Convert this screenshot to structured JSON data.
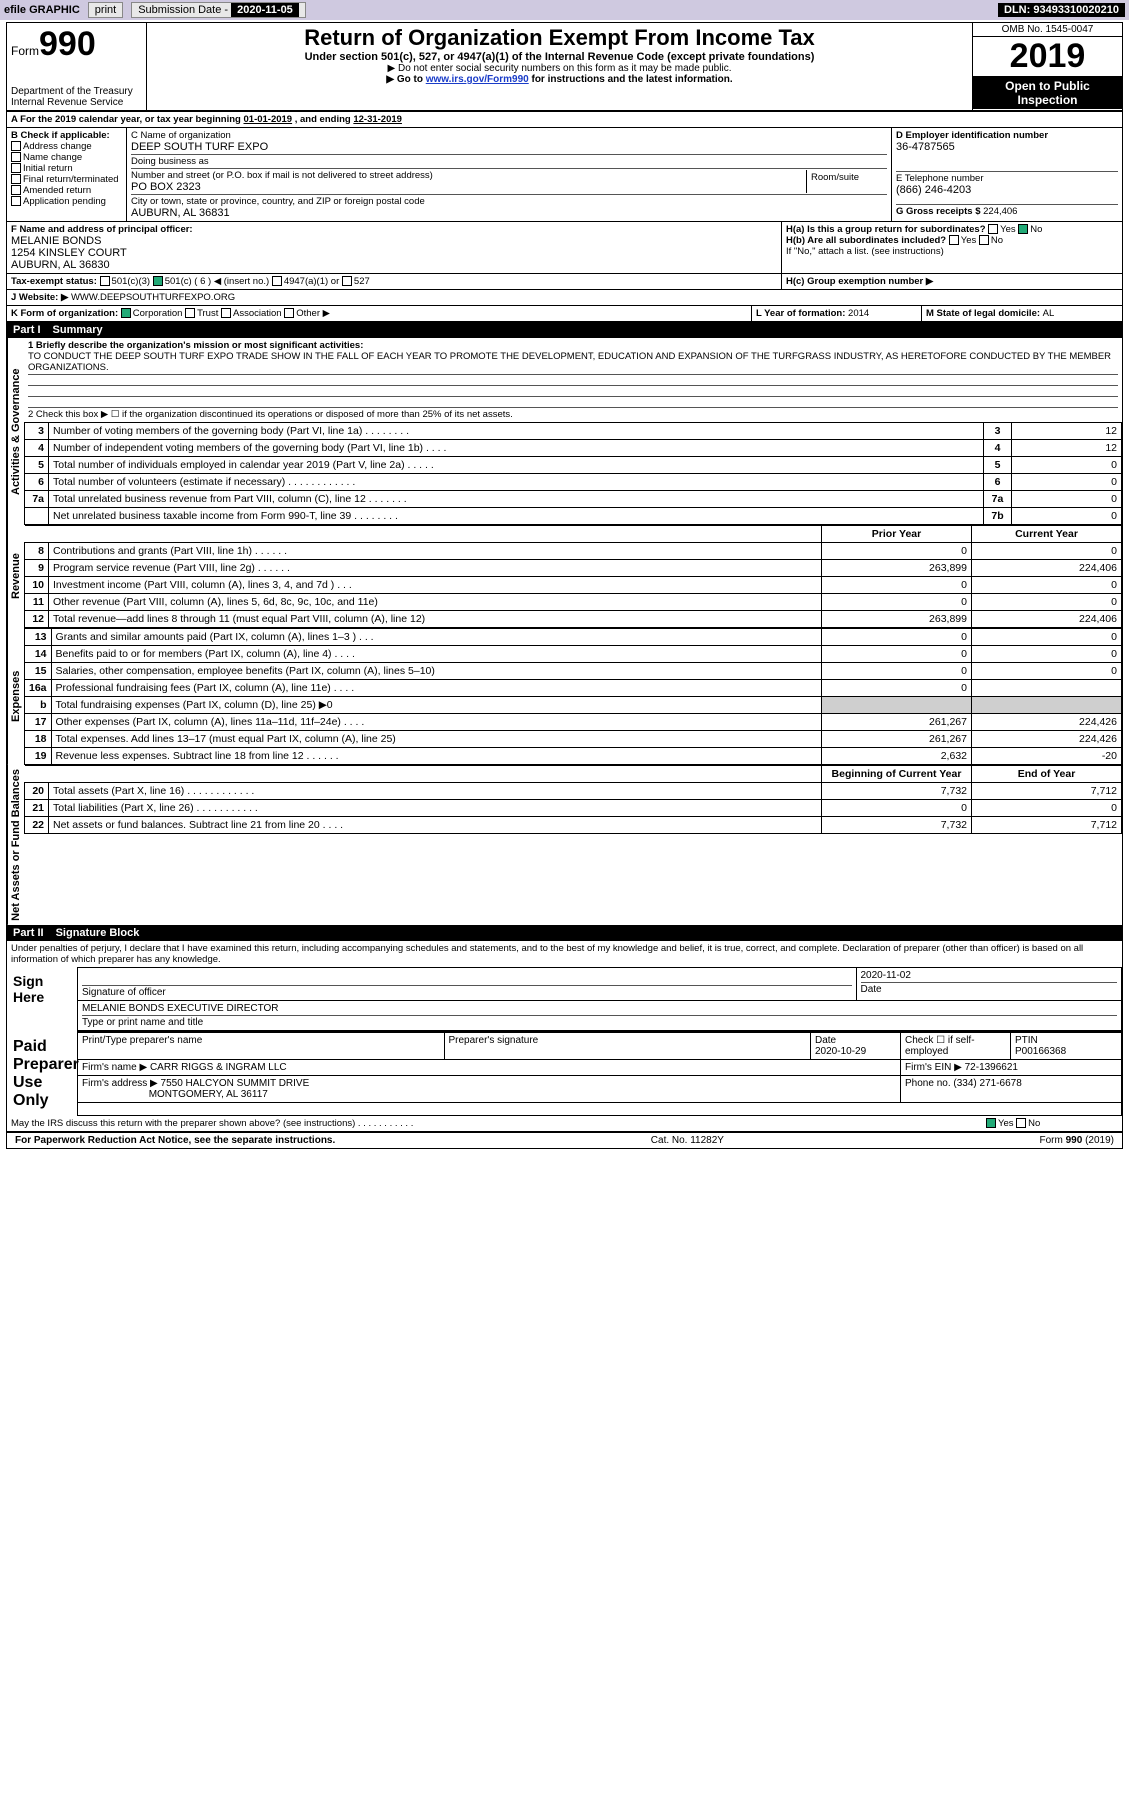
{
  "topbar": {
    "efile": "efile GRAPHIC",
    "print": "print",
    "submission_label": "Submission Date - ",
    "submission_date": "2020-11-05",
    "dln_label": "DLN: ",
    "dln": "93493310020210"
  },
  "header": {
    "form_prefix": "Form",
    "form_no": "990",
    "dept": "Department of the Treasury\nInternal Revenue Service",
    "title": "Return of Organization Exempt From Income Tax",
    "sub": "Under section 501(c), 527, or 4947(a)(1) of the Internal Revenue Code (except private foundations)",
    "note1": "▶ Do not enter social security numbers on this form as it may be made public.",
    "note2_pre": "▶ Go to ",
    "note2_link": "www.irs.gov/Form990",
    "note2_post": " for instructions and the latest information.",
    "omb": "OMB No. 1545-0047",
    "year": "2019",
    "inspect": "Open to Public Inspection"
  },
  "periodA": {
    "text_pre": "For the 2019 calendar year, or tax year beginning ",
    "begin": "01-01-2019",
    "mid": " , and ending ",
    "end": "12-31-2019"
  },
  "boxB": {
    "label": "B Check if applicable:",
    "opts": [
      "Address change",
      "Name change",
      "Initial return",
      "Final return/terminated",
      "Amended return",
      "Application pending"
    ]
  },
  "boxC": {
    "name_label": "C Name of organization",
    "name": "DEEP SOUTH TURF EXPO",
    "dba_label": "Doing business as",
    "dba": "",
    "addr_label": "Number and street (or P.O. box if mail is not delivered to street address)",
    "room_label": "Room/suite",
    "addr": "PO BOX 2323",
    "city_label": "City or town, state or province, country, and ZIP or foreign postal code",
    "city": "AUBURN, AL  36831"
  },
  "boxD": {
    "label": "D Employer identification number",
    "value": "36-4787565"
  },
  "boxE": {
    "label": "E Telephone number",
    "value": "(866) 246-4203"
  },
  "boxG": {
    "label": "G Gross receipts $ ",
    "value": "224,406"
  },
  "boxF": {
    "label": "F  Name and address of principal officer:",
    "name": "MELANIE BONDS",
    "addr1": "1254 KINSLEY COURT",
    "addr2": "AUBURN, AL  36830"
  },
  "boxH": {
    "ha": "H(a)  Is this a group return for subordinates?",
    "hb": "H(b)  Are all subordinates included?",
    "hb_note": "If \"No,\" attach a list. (see instructions)",
    "hc": "H(c)  Group exemption number ▶",
    "yes": "Yes",
    "no": "No"
  },
  "taxexempt": {
    "label": "Tax-exempt status:",
    "c3": "501(c)(3)",
    "c": "501(c) ( 6 ) ◀ (insert no.)",
    "a1": "4947(a)(1) or",
    "s527": "527"
  },
  "boxJ": {
    "label": "J    Website: ▶",
    "value": "WWW.DEEPSOUTHTURFEXPO.ORG"
  },
  "boxK": {
    "label": "K Form of organization:",
    "opts": [
      "Corporation",
      "Trust",
      "Association",
      "Other ▶"
    ]
  },
  "boxL": {
    "label": "L Year of formation: ",
    "value": "2014"
  },
  "boxM": {
    "label": "M State of legal domicile: ",
    "value": "AL"
  },
  "part1": {
    "tag": "Part I",
    "title": "Summary",
    "line1_label": "1  Briefly describe the organization's mission or most significant activities:",
    "line1_text": "TO CONDUCT THE DEEP SOUTH TURF EXPO TRADE SHOW IN THE FALL OF EACH YEAR TO PROMOTE THE DEVELOPMENT, EDUCATION AND EXPANSION OF THE TURFGRASS INDUSTRY, AS HERETOFORE CONDUCTED BY THE MEMBER ORGANIZATIONS.",
    "line2": "2   Check this box ▶ ☐  if the organization discontinued its operations or disposed of more than 25% of its net assets.",
    "gov_rows": [
      {
        "n": "3",
        "t": "Number of voting members of the governing body (Part VI, line 1a)  .   .   .   .   .   .   .   .",
        "box": "3",
        "v": "12"
      },
      {
        "n": "4",
        "t": "Number of independent voting members of the governing body (Part VI, line 1b)   .   .   .   .",
        "box": "4",
        "v": "12"
      },
      {
        "n": "5",
        "t": "Total number of individuals employed in calendar year 2019 (Part V, line 2a)   .   .   .   .   .",
        "box": "5",
        "v": "0"
      },
      {
        "n": "6",
        "t": "Total number of volunteers (estimate if necessary)   .   .   .   .   .   .   .   .   .   .   .   .",
        "box": "6",
        "v": "0"
      },
      {
        "n": "7a",
        "t": "Total unrelated business revenue from Part VIII, column (C), line 12   .   .   .   .   .   .   .",
        "box": "7a",
        "v": "0"
      },
      {
        "n": "",
        "t": "Net unrelated business taxable income from Form 990-T, line 39   .   .   .   .   .   .   .   .",
        "box": "7b",
        "v": "0"
      }
    ],
    "col_prior": "Prior Year",
    "col_curr": "Current Year",
    "rev_rows": [
      {
        "n": "8",
        "t": "Contributions and grants (Part VIII, line 1h)   .   .   .   .   .   .",
        "p": "0",
        "c": "0"
      },
      {
        "n": "9",
        "t": "Program service revenue (Part VIII, line 2g)   .   .   .   .   .   .",
        "p": "263,899",
        "c": "224,406"
      },
      {
        "n": "10",
        "t": "Investment income (Part VIII, column (A), lines 3, 4, and 7d )   .   .   .",
        "p": "0",
        "c": "0"
      },
      {
        "n": "11",
        "t": "Other revenue (Part VIII, column (A), lines 5, 6d, 8c, 9c, 10c, and 11e)",
        "p": "0",
        "c": "0"
      },
      {
        "n": "12",
        "t": "Total revenue—add lines 8 through 11 (must equal Part VIII, column (A), line 12)",
        "p": "263,899",
        "c": "224,406"
      }
    ],
    "exp_rows": [
      {
        "n": "13",
        "t": "Grants and similar amounts paid (Part IX, column (A), lines 1–3 )   .   .   .",
        "p": "0",
        "c": "0"
      },
      {
        "n": "14",
        "t": "Benefits paid to or for members (Part IX, column (A), line 4)   .   .   .   .",
        "p": "0",
        "c": "0"
      },
      {
        "n": "15",
        "t": "Salaries, other compensation, employee benefits (Part IX, column (A), lines 5–10)",
        "p": "0",
        "c": "0"
      },
      {
        "n": "16a",
        "t": "Professional fundraising fees (Part IX, column (A), line 11e)   .   .   .   .",
        "p": "0",
        "c": ""
      },
      {
        "n": "b",
        "t": "Total fundraising expenses (Part IX, column (D), line 25) ▶0",
        "p": "gray",
        "c": "gray"
      },
      {
        "n": "17",
        "t": "Other expenses (Part IX, column (A), lines 11a–11d, 11f–24e)   .   .   .   .",
        "p": "261,267",
        "c": "224,426"
      },
      {
        "n": "18",
        "t": "Total expenses. Add lines 13–17 (must equal Part IX, column (A), line 25)",
        "p": "261,267",
        "c": "224,426"
      },
      {
        "n": "19",
        "t": "Revenue less expenses. Subtract line 18 from line 12   .   .   .   .   .   .",
        "p": "2,632",
        "c": "-20"
      }
    ],
    "col_boc": "Beginning of Current Year",
    "col_eoy": "End of Year",
    "na_rows": [
      {
        "n": "20",
        "t": "Total assets (Part X, line 16)   .   .   .   .   .   .   .   .   .   .   .   .",
        "p": "7,732",
        "c": "7,712"
      },
      {
        "n": "21",
        "t": "Total liabilities (Part X, line 26)   .   .   .   .   .   .   .   .   .   .   .",
        "p": "0",
        "c": "0"
      },
      {
        "n": "22",
        "t": "Net assets or fund balances. Subtract line 21 from line 20   .   .   .   .",
        "p": "7,732",
        "c": "7,712"
      }
    ],
    "sections": {
      "gov": "Activities & Governance",
      "rev": "Revenue",
      "exp": "Expenses",
      "na": "Net Assets or Fund Balances"
    }
  },
  "part2": {
    "tag": "Part II",
    "title": "Signature Block",
    "perjury": "Under penalties of perjury, I declare that I have examined this return, including accompanying schedules and statements, and to the best of my knowledge and belief, it is true, correct, and complete. Declaration of preparer (other than officer) is based on all information of which preparer has any knowledge."
  },
  "sign": {
    "here": "Sign Here",
    "sig_officer": "Signature of officer",
    "date": "Date",
    "date_val": "2020-11-02",
    "typed": "MELANIE BONDS  EXECUTIVE DIRECTOR",
    "typed_label": "Type or print name and title"
  },
  "preparer": {
    "label": "Paid Preparer Use Only",
    "print_name": "Print/Type preparer's name",
    "sig": "Preparer's signature",
    "date_label": "Date",
    "date": "2020-10-29",
    "check": "Check ☐ if self-employed",
    "ptin_label": "PTIN",
    "ptin": "P00166368",
    "firm_name_label": "Firm's name    ▶",
    "firm_name": "CARR RIGGS & INGRAM LLC",
    "firm_ein_label": "Firm's EIN ▶",
    "firm_ein": "72-1396621",
    "firm_addr_label": "Firm's address ▶",
    "firm_addr1": "7550 HALCYON SUMMIT DRIVE",
    "firm_addr2": "MONTGOMERY, AL  36117",
    "phone_label": "Phone no.",
    "phone": "(334) 271-6678",
    "discuss": "May the IRS discuss this return with the preparer shown above? (see instructions)   .   .   .   .   .   .   .   .   .   .   .",
    "yes": "Yes",
    "no": "No"
  },
  "footer": {
    "pra": "For Paperwork Reduction Act Notice, see the separate instructions.",
    "cat": "Cat. No. 11282Y",
    "form": "Form 990 (2019)"
  }
}
